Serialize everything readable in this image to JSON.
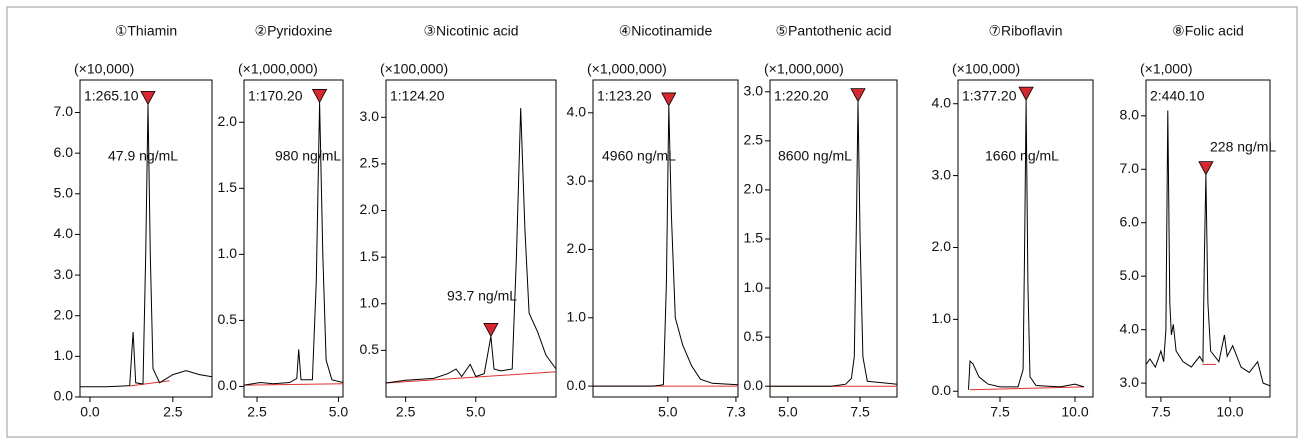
{
  "chart_data": [
    {
      "type": "line",
      "title": "①Thiamin",
      "scale_label": "(×10,000)",
      "peak_label": "1:265.10",
      "concentration": "47.9 ng/mL",
      "xlim": [
        -0.3,
        3.68
      ],
      "xticks": [
        {
          "value": 0,
          "label": "0.0"
        },
        2.5
      ],
      "ylim": [
        0,
        7.8
      ],
      "yticks": [
        {
          "value": 0,
          "label": "0.0"
        },
        {
          "value": 1,
          "label": "1.0"
        },
        {
          "value": 2,
          "label": "2.0"
        },
        {
          "value": 3,
          "label": "3.0"
        },
        {
          "value": 4,
          "label": "4.0"
        },
        {
          "value": 5,
          "label": "5.0"
        },
        {
          "value": 6,
          "label": "6.0"
        },
        {
          "value": 7,
          "label": "7.0"
        }
      ],
      "x": [
        -0.3,
        0.5,
        1.0,
        1.2,
        1.3,
        1.38,
        1.6,
        1.68,
        1.75,
        1.82,
        1.9,
        2.1,
        2.5,
        2.9,
        3.3,
        3.68
      ],
      "values": [
        0.25,
        0.25,
        0.27,
        0.28,
        1.6,
        0.35,
        0.32,
        3.5,
        7.2,
        3.5,
        0.7,
        0.35,
        0.55,
        0.65,
        0.55,
        0.5
      ],
      "color": "#000000",
      "baseline_x": [
        1.2,
        2.4
      ],
      "baseline_values": [
        0.27,
        0.4
      ],
      "baseline_color": "#e03030",
      "peak_x": 1.75,
      "peak_value": 7.2,
      "marker_color": "#d9262f"
    },
    {
      "type": "line",
      "title": "②Pyridoxine",
      "scale_label": "(×1,000,000)",
      "peak_label": "1:170.20",
      "concentration": "980 ng/mL",
      "xlim": [
        2.1,
        5.14
      ],
      "xticks": [
        2.5,
        {
          "value": 5,
          "label": "5.0"
        }
      ],
      "ylim": [
        -0.08,
        2.32
      ],
      "yticks": [
        {
          "value": 0,
          "label": "0.0"
        },
        0.5,
        {
          "value": 1,
          "label": "1.0"
        },
        1.5,
        {
          "value": 2,
          "label": "2.0"
        }
      ],
      "x": [
        2.1,
        2.6,
        3.0,
        3.5,
        3.72,
        3.78,
        3.85,
        4.2,
        4.32,
        4.42,
        4.52,
        4.62,
        4.8,
        5.14
      ],
      "values": [
        0.01,
        0.03,
        0.02,
        0.03,
        0.06,
        0.28,
        0.05,
        0.05,
        0.8,
        2.15,
        1.0,
        0.2,
        0.05,
        0.03
      ],
      "color": "#000000",
      "baseline_x": [
        2.1,
        5.14
      ],
      "baseline_values": [
        0.01,
        0.02
      ],
      "baseline_color": "#e03030",
      "peak_x": 4.42,
      "peak_value": 2.15,
      "marker_color": "#d9262f"
    },
    {
      "type": "line",
      "title": "③Nicotinic acid",
      "scale_label": "(×100,000)",
      "peak_label": "1:124.20",
      "concentration": "93.7 ng/mL",
      "xlim": [
        1.8,
        7.86
      ],
      "xticks": [
        2.5,
        {
          "value": 5,
          "label": "5.0"
        }
      ],
      "ylim": [
        0,
        3.4
      ],
      "yticks": [
        0.5,
        {
          "value": 1,
          "label": "1.0"
        },
        1.5,
        {
          "value": 2,
          "label": "2.0"
        },
        2.5,
        {
          "value": 3,
          "label": "3.0"
        }
      ],
      "x": [
        1.8,
        2.5,
        3.5,
        4.0,
        4.3,
        4.5,
        4.8,
        5.0,
        5.3,
        5.45,
        5.54,
        5.65,
        5.9,
        6.3,
        6.45,
        6.6,
        6.75,
        6.9,
        7.2,
        7.5,
        7.86
      ],
      "values": [
        0.15,
        0.18,
        0.2,
        0.25,
        0.3,
        0.22,
        0.35,
        0.22,
        0.25,
        0.5,
        0.65,
        0.3,
        0.28,
        0.3,
        1.5,
        3.1,
        1.8,
        0.9,
        0.7,
        0.45,
        0.3
      ],
      "color": "#000000",
      "baseline_x": [
        1.8,
        7.86
      ],
      "baseline_values": [
        0.15,
        0.27
      ],
      "baseline_color": "#e03030",
      "peak_x": 5.54,
      "peak_value": 0.65,
      "marker_color": "#d9262f"
    },
    {
      "type": "line",
      "title": "④Nicotinamide",
      "scale_label": "(×1,000,000)",
      "peak_label": "1:123.20",
      "concentration": "4960 ng/mL",
      "xlim": [
        2.47,
        7.37
      ],
      "xticks": [
        {
          "value": 5,
          "label": "5.0"
        },
        7.3
      ],
      "ylim": [
        -0.16,
        4.48
      ],
      "yticks": [
        {
          "value": 0,
          "label": "0.0"
        },
        {
          "value": 1,
          "label": "1.0"
        },
        {
          "value": 2,
          "label": "2.0"
        },
        {
          "value": 3,
          "label": "3.0"
        },
        {
          "value": 4,
          "label": "4.0"
        }
      ],
      "x": [
        2.47,
        4.5,
        4.85,
        4.95,
        5.03,
        5.12,
        5.25,
        5.5,
        5.8,
        6.1,
        6.5,
        7.37
      ],
      "values": [
        0.0,
        0.0,
        0.02,
        1.5,
        4.1,
        2.5,
        1.0,
        0.6,
        0.3,
        0.1,
        0.04,
        0.02
      ],
      "color": "#000000",
      "baseline_x": [
        2.47,
        7.37
      ],
      "baseline_values": [
        0.0,
        0.0
      ],
      "baseline_color": "#e03030",
      "peak_x": 5.03,
      "peak_value": 4.1,
      "marker_color": "#d9262f"
    },
    {
      "type": "line",
      "title": "⑤Pantothenic acid",
      "scale_label": "(×1,000,000)",
      "peak_label": "1:220.20",
      "concentration": "8600 ng/mL",
      "xlim": [
        4.38,
        8.78
      ],
      "xticks": [
        {
          "value": 5,
          "label": "5.0"
        },
        7.5
      ],
      "ylim": [
        -0.11,
        3.12
      ],
      "yticks": [
        {
          "value": 0,
          "label": "0.0"
        },
        0.5,
        {
          "value": 1,
          "label": "1.0"
        },
        1.5,
        {
          "value": 2,
          "label": "2.0"
        },
        2.5,
        {
          "value": 3,
          "label": "3.0"
        }
      ],
      "x": [
        4.38,
        6.5,
        7.0,
        7.2,
        7.3,
        7.38,
        7.43,
        7.5,
        7.6,
        7.75,
        8.78
      ],
      "values": [
        0.0,
        0.0,
        0.02,
        0.08,
        0.3,
        1.8,
        2.9,
        1.5,
        0.3,
        0.05,
        0.02
      ],
      "color": "#000000",
      "baseline_x": [
        4.38,
        8.78
      ],
      "baseline_values": [
        0.0,
        0.0
      ],
      "baseline_color": "#e03030",
      "peak_x": 7.43,
      "peak_value": 2.9,
      "marker_color": "#d9262f"
    },
    {
      "type": "line",
      "title": "⑦Riboflavin",
      "scale_label": "(×100,000)",
      "peak_label": "1:377.20",
      "concentration": "1660 ng/mL",
      "xlim": [
        6.1,
        10.6
      ],
      "xticks": [
        7.5,
        {
          "value": 10,
          "label": "10.0"
        }
      ],
      "ylim": [
        -0.08,
        4.33
      ],
      "yticks": [
        {
          "value": 0,
          "label": "0.0"
        },
        {
          "value": 1,
          "label": "1.0"
        },
        {
          "value": 2,
          "label": "2.0"
        },
        {
          "value": 3,
          "label": "3.0"
        },
        {
          "value": 4,
          "label": "4.0"
        }
      ],
      "x": [
        6.45,
        6.5,
        6.6,
        6.8,
        7.1,
        7.5,
        8.1,
        8.27,
        8.32,
        8.37,
        8.43,
        8.5,
        8.7,
        9.5,
        10.0,
        10.3
      ],
      "values": [
        0.02,
        0.42,
        0.38,
        0.2,
        0.1,
        0.06,
        0.06,
        0.3,
        2.0,
        4.05,
        1.5,
        0.2,
        0.08,
        0.06,
        0.1,
        0.06
      ],
      "color": "#000000",
      "baseline_x": [
        6.5,
        10.3
      ],
      "baseline_values": [
        0.02,
        0.06
      ],
      "baseline_color": "#e03030",
      "peak_x": 8.37,
      "peak_value": 4.05,
      "marker_color": "#d9262f"
    },
    {
      "type": "line",
      "title": "⑧Folic acid",
      "scale_label": "(×1,000)",
      "peak_label": "2:440.10",
      "concentration": "228 ng/mL",
      "xlim": [
        6.96,
        11.45
      ],
      "xticks": [
        7.5,
        {
          "value": 10,
          "label": "10.0"
        }
      ],
      "ylim": [
        2.74,
        8.67
      ],
      "yticks": [
        {
          "value": 3,
          "label": "3.0"
        },
        {
          "value": 4,
          "label": "4.0"
        },
        {
          "value": 5,
          "label": "5.0"
        },
        {
          "value": 6,
          "label": "6.0"
        },
        {
          "value": 7,
          "label": "7.0"
        },
        {
          "value": 8,
          "label": "8.0"
        }
      ],
      "x": [
        6.96,
        7.1,
        7.3,
        7.5,
        7.6,
        7.68,
        7.75,
        7.82,
        7.88,
        7.95,
        8.05,
        8.3,
        8.6,
        8.9,
        9.02,
        9.08,
        9.13,
        9.2,
        9.3,
        9.6,
        9.8,
        9.9,
        10.1,
        10.4,
        10.7,
        11.0,
        11.2,
        11.45
      ],
      "values": [
        3.35,
        3.45,
        3.3,
        3.6,
        3.4,
        4.0,
        8.1,
        4.5,
        3.9,
        4.1,
        3.6,
        3.4,
        3.3,
        3.5,
        3.4,
        5.5,
        6.9,
        4.5,
        3.6,
        3.4,
        3.9,
        3.5,
        3.7,
        3.3,
        3.2,
        3.4,
        3.0,
        2.95
      ],
      "color": "#000000",
      "baseline_x": [
        9.0,
        9.5
      ],
      "baseline_values": [
        3.35,
        3.35
      ],
      "baseline_color": "#e03030",
      "peak_x": 9.13,
      "peak_value": 6.9,
      "marker_color": "#d9262f"
    }
  ]
}
